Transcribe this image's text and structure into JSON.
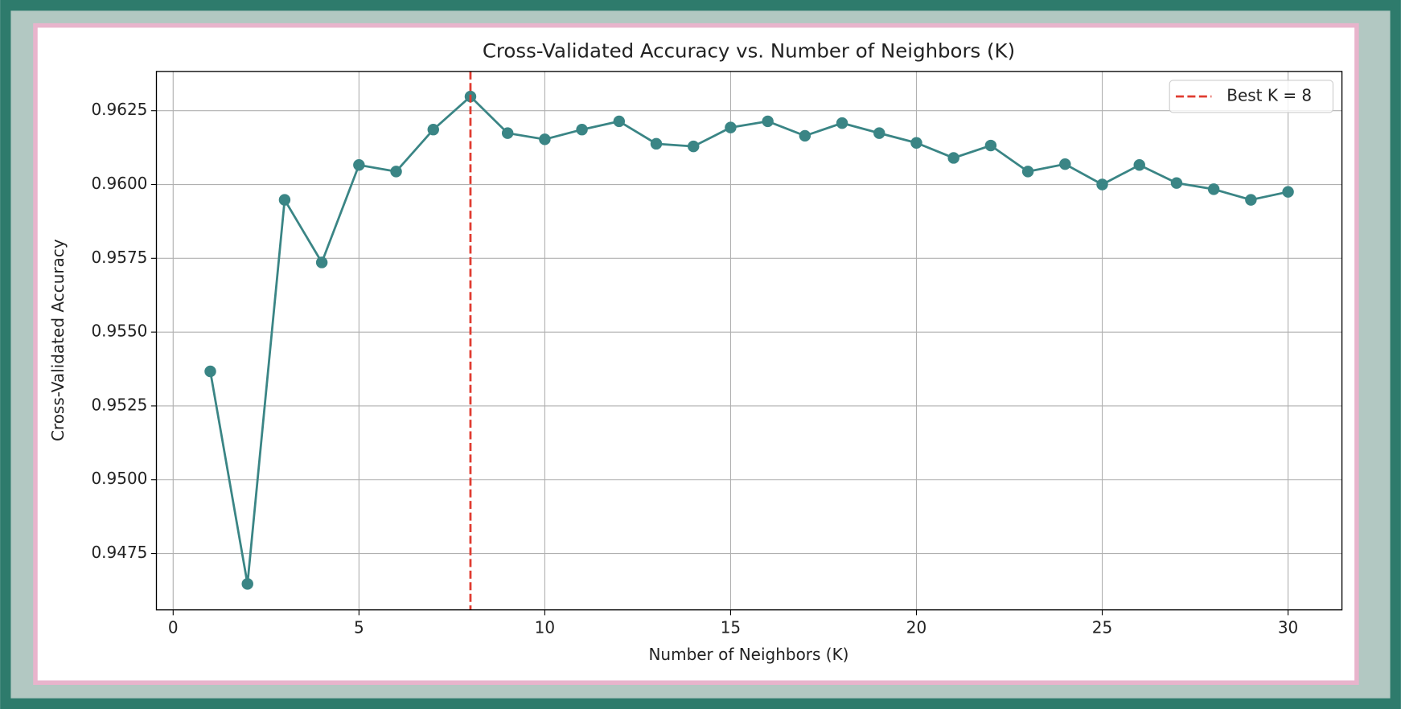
{
  "chart_data": {
    "type": "line",
    "title": "Cross-Validated Accuracy vs. Number of Neighbors (K)",
    "x_label": "Number of Neighbors (K)",
    "y_label": "Cross-Validated Accuracy",
    "x": [
      1,
      2,
      3,
      4,
      5,
      6,
      7,
      8,
      9,
      10,
      11,
      12,
      13,
      14,
      15,
      16,
      17,
      18,
      19,
      20,
      21,
      22,
      23,
      24,
      25,
      26,
      27,
      28,
      29,
      30
    ],
    "series": [
      {
        "color": "#3a8585",
        "values": [
          0.95367,
          0.94647,
          0.95948,
          0.95736,
          0.96066,
          0.96044,
          0.96186,
          0.96298,
          0.96174,
          0.96153,
          0.96186,
          0.96214,
          0.96138,
          0.96129,
          0.96193,
          0.96214,
          0.96165,
          0.96208,
          0.96174,
          0.96141,
          0.9609,
          0.96132,
          0.96044,
          0.96069,
          0.96,
          0.96066,
          0.96005,
          0.95984,
          0.95948,
          0.95975
        ]
      }
    ],
    "vline": {
      "x": 8,
      "label": "Best K = 8",
      "color": "#e03c31"
    },
    "xlim": [
      -0.45,
      31.45
    ],
    "ylim": [
      0.94559,
      0.96383
    ],
    "xticks": [
      0,
      5,
      10,
      15,
      20,
      25,
      30
    ],
    "yticks": [
      0.9475,
      {
        "value": 0.95,
        "label": "0.9500"
      },
      0.9525,
      {
        "value": 0.955,
        "label": "0.9550"
      },
      0.9575,
      {
        "value": 0.96,
        "label": "0.9600"
      },
      0.9625
    ],
    "grid": true,
    "legend_loc": "upper right"
  }
}
